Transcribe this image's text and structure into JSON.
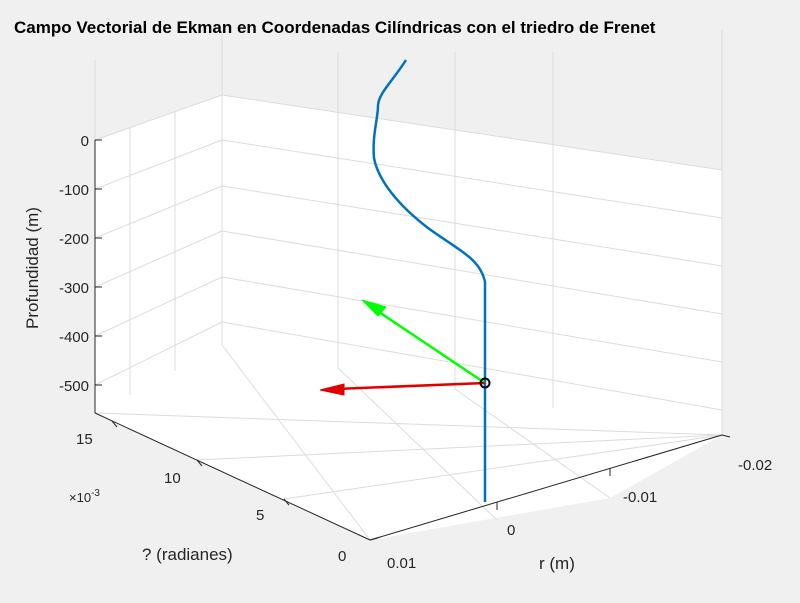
{
  "chart_data": {
    "type": "line3d",
    "title": "Campo Vectorial de Ekman en Coordenadas Cilíndricas con el triedro de Frenet",
    "xlabel": "r (m)",
    "ylabel": "? (radianes)",
    "zlabel": "Profundidad (m)",
    "xlim": [
      -0.02,
      0.01
    ],
    "ylim": [
      0,
      0.015
    ],
    "zlim": [
      -550,
      0
    ],
    "x_ticks": [
      "-0.02",
      "-0.01",
      "0",
      "0.01"
    ],
    "y_ticks": [
      "0",
      "5",
      "10",
      "15"
    ],
    "y_exponent": "×10",
    "y_exponent_power": "-3",
    "z_ticks": [
      "0",
      "-100",
      "-200",
      "-300",
      "-400",
      "-500"
    ],
    "grid": true,
    "colors": {
      "curve": "#0072bd",
      "tangent": "#00ff00",
      "normal": "#e00000",
      "point": "#000000"
    }
  }
}
